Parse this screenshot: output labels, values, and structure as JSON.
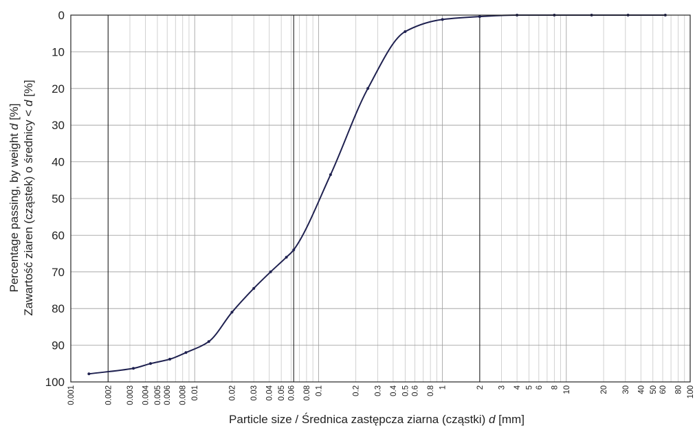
{
  "chart_data": {
    "type": "line",
    "title": "",
    "xlabel_parts": [
      "Particle size / Średnica zastępcza ziarna (cząstki) ",
      "d",
      " [mm]"
    ],
    "ylabel_line1_parts": [
      "Percentage passing, by weight ",
      "d",
      " [%]"
    ],
    "ylabel_line2_parts": [
      "Zawartość ziaren (cząstek) o średnicy < ",
      "d",
      " [%]"
    ],
    "x_scale": "log",
    "xlim": [
      0.001,
      100
    ],
    "ylim": [
      0,
      100
    ],
    "y_inverted": true,
    "grid": true,
    "major_vertical_lines": [
      0.002,
      0.063,
      2
    ],
    "x_tick_labels": [
      "0.001",
      "0.002",
      "0.003",
      "0.004",
      "0.005",
      "0.006",
      "0.008",
      "0.01",
      "0.02",
      "0.03",
      "0.04",
      "0.05",
      "0.06",
      "0.08",
      "0.1",
      "0.2",
      "0.3",
      "0.4",
      "0.5",
      "0.6",
      "0.8",
      "1",
      "2",
      "3",
      "4",
      "5",
      "6",
      "8",
      "10",
      "20",
      "30",
      "40",
      "50",
      "60",
      "80",
      "100"
    ],
    "y_tick_labels": [
      "0",
      "10",
      "20",
      "30",
      "40",
      "50",
      "60",
      "70",
      "80",
      "90",
      "100"
    ],
    "line_color": "#1f2150",
    "series": [
      {
        "x": [
          0.0014,
          0.0032,
          0.0044,
          0.0063,
          0.0085,
          0.013,
          0.02,
          0.03,
          0.041,
          0.055,
          0.063,
          0.125,
          0.25,
          0.5,
          1,
          2,
          4,
          8,
          16,
          31.5,
          63
        ],
        "y": [
          97.8,
          96.3,
          95.0,
          93.8,
          92.0,
          89.0,
          81.0,
          74.5,
          70.0,
          66.0,
          64.0,
          43.5,
          20.0,
          4.5,
          1.2,
          0.4,
          0.0,
          0.0,
          0.0,
          0.0,
          0.0
        ]
      }
    ]
  }
}
